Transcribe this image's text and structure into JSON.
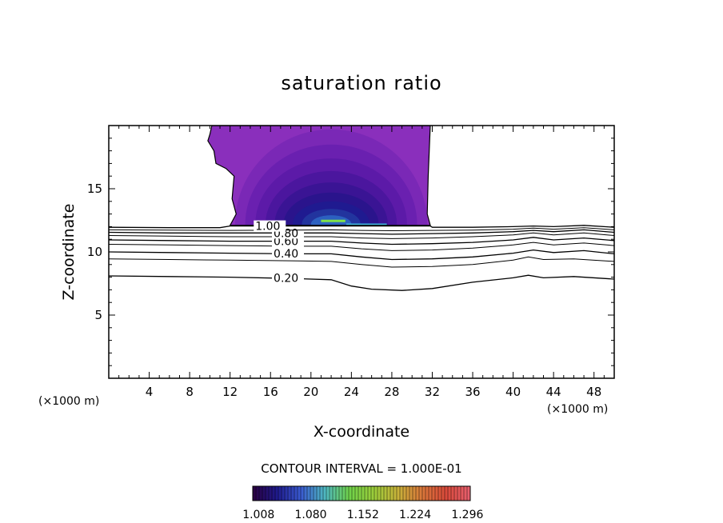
{
  "chart_data": {
    "type": "contour",
    "title": "saturation ratio",
    "xlabel": "X-coordinate",
    "ylabel": "Z-coordinate",
    "x_unit": "(×1000 m)",
    "y_unit": "(×1000 m)",
    "xlim": [
      0,
      50
    ],
    "ylim": [
      0,
      20
    ],
    "x_ticks": [
      4,
      8,
      12,
      16,
      20,
      24,
      28,
      32,
      36,
      40,
      44,
      48
    ],
    "y_ticks": [
      5,
      10,
      15
    ],
    "contour_interval_text": "CONTOUR INTERVAL = 1.000E-01",
    "colorbar": {
      "labels": [
        "1.008",
        "1.080",
        "1.152",
        "1.224",
        "1.296"
      ],
      "range": [
        1.0,
        1.3
      ],
      "colors": [
        "#2a0040",
        "#1f1a8c",
        "#3a5bd0",
        "#4fb8c0",
        "#6fd24a",
        "#9bcd3a",
        "#c8b23a",
        "#d9773a",
        "#d94a3a",
        "#e86070"
      ]
    },
    "supersaturated_region": {
      "outline": [
        [
          12,
          12.1
        ],
        [
          12.6,
          13.0
        ],
        [
          12.2,
          14.2
        ],
        [
          12.4,
          16.0
        ],
        [
          11.6,
          16.6
        ],
        [
          10.6,
          17.0
        ],
        [
          10.4,
          18.0
        ],
        [
          9.8,
          18.8
        ],
        [
          10.0,
          19.3
        ],
        [
          10.2,
          20.0
        ],
        [
          31.8,
          20.0
        ],
        [
          31.6,
          16.0
        ],
        [
          31.5,
          13.0
        ],
        [
          31.8,
          12.1
        ]
      ],
      "bands": [
        {
          "cx": 22,
          "cy": 12.2,
          "rx": 9.5,
          "ry": 7.5,
          "color": "#7a28b6"
        },
        {
          "cx": 22,
          "cy": 12.2,
          "rx": 8.5,
          "ry": 6.3,
          "color": "#6a20b0"
        },
        {
          "cx": 22,
          "cy": 12.2,
          "rx": 7.5,
          "ry": 5.2,
          "color": "#5c1aa8"
        },
        {
          "cx": 22,
          "cy": 12.2,
          "rx": 6.5,
          "ry": 4.2,
          "color": "#4b169e"
        },
        {
          "cx": 22,
          "cy": 12.2,
          "rx": 5.6,
          "ry": 3.3,
          "color": "#3a1494"
        },
        {
          "cx": 22,
          "cy": 12.2,
          "rx": 4.7,
          "ry": 2.5,
          "color": "#2a148c"
        },
        {
          "cx": 22,
          "cy": 12.2,
          "rx": 3.8,
          "ry": 1.8,
          "color": "#1f1a90"
        },
        {
          "cx": 22,
          "cy": 12.2,
          "rx": 2.9,
          "ry": 1.2,
          "color": "#22349e"
        },
        {
          "cx": 22,
          "cy": 12.2,
          "rx": 2.0,
          "ry": 0.7,
          "color": "#2c60c0"
        }
      ],
      "highlights": [
        {
          "x1": 21.0,
          "x2": 23.4,
          "y": 12.45,
          "color": "#7ee04a"
        },
        {
          "x1": 23.5,
          "x2": 27.5,
          "y": 12.15,
          "color": "#3fb0d8"
        }
      ]
    },
    "contour_lines": [
      {
        "label": "0.20",
        "label_x": 16.3,
        "points": [
          [
            0,
            8.1
          ],
          [
            6,
            8.05
          ],
          [
            12,
            8.0
          ],
          [
            18,
            7.9
          ],
          [
            22,
            7.8
          ],
          [
            24,
            7.3
          ],
          [
            26,
            7.05
          ],
          [
            29,
            6.95
          ],
          [
            32,
            7.1
          ],
          [
            36,
            7.6
          ],
          [
            40,
            7.95
          ],
          [
            41.5,
            8.15
          ],
          [
            43,
            7.95
          ],
          [
            46,
            8.05
          ],
          [
            50,
            7.85
          ]
        ]
      },
      {
        "label": "",
        "label_x": null,
        "points": [
          [
            0,
            9.45
          ],
          [
            6,
            9.4
          ],
          [
            12,
            9.35
          ],
          [
            18,
            9.3
          ],
          [
            22,
            9.25
          ],
          [
            25,
            9.0
          ],
          [
            28,
            8.8
          ],
          [
            32,
            8.85
          ],
          [
            36,
            9.0
          ],
          [
            40,
            9.35
          ],
          [
            41.5,
            9.6
          ],
          [
            43,
            9.4
          ],
          [
            46,
            9.45
          ],
          [
            50,
            9.25
          ]
        ]
      },
      {
        "label": "0.40",
        "label_x": 16.3,
        "points": [
          [
            0,
            10.0
          ],
          [
            6,
            9.95
          ],
          [
            12,
            9.9
          ],
          [
            18,
            9.85
          ],
          [
            22,
            9.85
          ],
          [
            25,
            9.6
          ],
          [
            28,
            9.4
          ],
          [
            32,
            9.45
          ],
          [
            36,
            9.6
          ],
          [
            40,
            9.9
          ],
          [
            42,
            10.15
          ],
          [
            44,
            9.95
          ],
          [
            47,
            10.1
          ],
          [
            50,
            9.85
          ]
        ]
      },
      {
        "label": "",
        "label_x": null,
        "points": [
          [
            0,
            10.6
          ],
          [
            6,
            10.55
          ],
          [
            12,
            10.5
          ],
          [
            18,
            10.45
          ],
          [
            22,
            10.45
          ],
          [
            25,
            10.25
          ],
          [
            28,
            10.1
          ],
          [
            32,
            10.15
          ],
          [
            36,
            10.3
          ],
          [
            40,
            10.55
          ],
          [
            42,
            10.75
          ],
          [
            44,
            10.55
          ],
          [
            47,
            10.7
          ],
          [
            50,
            10.5
          ]
        ]
      },
      {
        "label": "0.60",
        "label_x": 16.3,
        "points": [
          [
            0,
            10.95
          ],
          [
            6,
            10.9
          ],
          [
            12,
            10.85
          ],
          [
            18,
            10.85
          ],
          [
            22,
            10.85
          ],
          [
            25,
            10.7
          ],
          [
            28,
            10.6
          ],
          [
            32,
            10.65
          ],
          [
            36,
            10.75
          ],
          [
            40,
            10.95
          ],
          [
            42,
            11.15
          ],
          [
            44,
            10.95
          ],
          [
            47,
            11.1
          ],
          [
            50,
            10.9
          ]
        ]
      },
      {
        "label": "",
        "label_x": null,
        "points": [
          [
            0,
            11.3
          ],
          [
            6,
            11.25
          ],
          [
            12,
            11.2
          ],
          [
            18,
            11.2
          ],
          [
            22,
            11.2
          ],
          [
            25,
            11.1
          ],
          [
            28,
            11.05
          ],
          [
            32,
            11.1
          ],
          [
            36,
            11.2
          ],
          [
            40,
            11.35
          ],
          [
            42,
            11.5
          ],
          [
            44,
            11.35
          ],
          [
            47,
            11.5
          ],
          [
            50,
            11.3
          ]
        ]
      },
      {
        "label": "0.80",
        "label_x": 16.3,
        "points": [
          [
            0,
            11.55
          ],
          [
            6,
            11.5
          ],
          [
            12,
            11.5
          ],
          [
            18,
            11.5
          ],
          [
            22,
            11.5
          ],
          [
            25,
            11.45
          ],
          [
            28,
            11.4
          ],
          [
            32,
            11.45
          ],
          [
            36,
            11.5
          ],
          [
            40,
            11.6
          ],
          [
            42,
            11.7
          ],
          [
            44,
            11.6
          ],
          [
            47,
            11.75
          ],
          [
            50,
            11.55
          ]
        ]
      },
      {
        "label": "",
        "label_x": null,
        "points": [
          [
            0,
            11.75
          ],
          [
            6,
            11.72
          ],
          [
            12,
            11.7
          ],
          [
            18,
            11.72
          ],
          [
            22,
            11.75
          ],
          [
            25,
            11.7
          ],
          [
            28,
            11.68
          ],
          [
            32,
            11.7
          ],
          [
            36,
            11.72
          ],
          [
            40,
            11.8
          ],
          [
            42,
            11.88
          ],
          [
            44,
            11.8
          ],
          [
            47,
            11.92
          ],
          [
            50,
            11.75
          ]
        ]
      },
      {
        "label": "1.00",
        "label_x": 14.5,
        "points": [
          [
            0,
            11.95
          ],
          [
            6,
            11.92
          ],
          [
            11,
            11.92
          ],
          [
            12,
            12.05
          ],
          [
            31.8,
            12.05
          ],
          [
            32,
            11.95
          ],
          [
            36,
            11.95
          ],
          [
            40,
            12.0
          ],
          [
            42,
            12.05
          ],
          [
            44,
            12.0
          ],
          [
            47,
            12.1
          ],
          [
            50,
            11.95
          ]
        ]
      }
    ]
  }
}
